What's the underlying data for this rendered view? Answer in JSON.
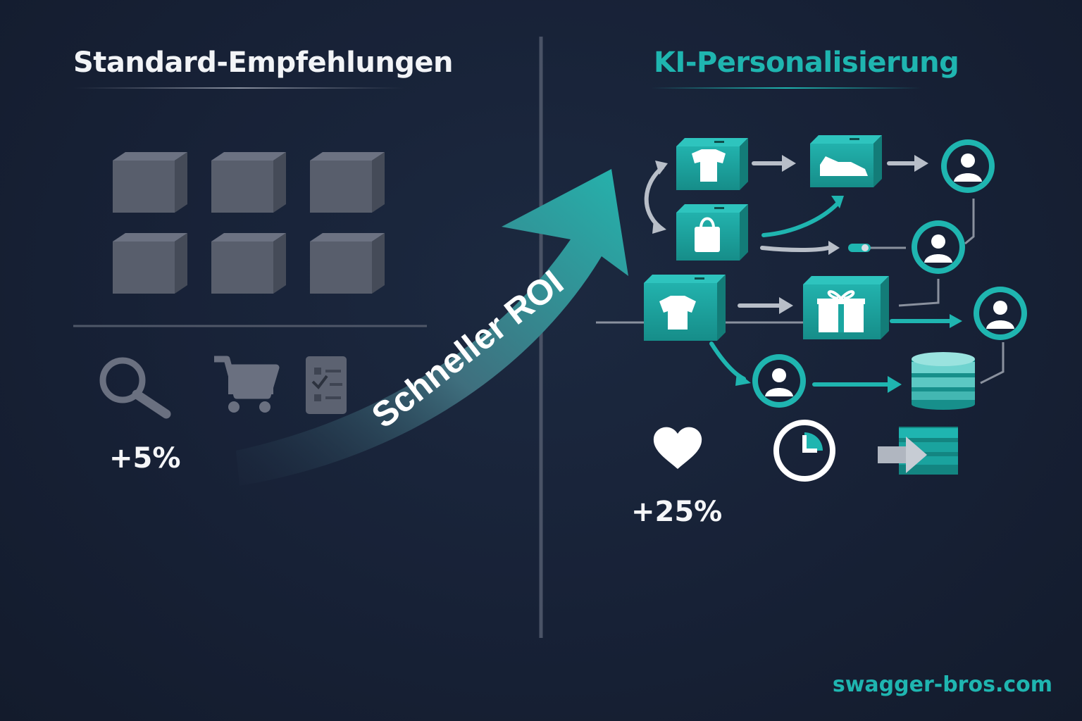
{
  "left": {
    "title": "Standard-Empfehlungen",
    "percent": "+5%",
    "icons": [
      "search-icon",
      "shopping-cart-icon",
      "checklist-icon"
    ]
  },
  "center": {
    "arrow_label": "Schneller ROI"
  },
  "right": {
    "title": "KI-Personalisierung",
    "percent": "+25%",
    "nodes": [
      "tshirt-box-icon",
      "sneaker-box-icon",
      "shopping-bag-box-icon",
      "shirt-box-icon",
      "gift-box-icon",
      "user-icon",
      "database-icon"
    ],
    "icons": [
      "heart-icon",
      "clock-icon",
      "export-icon"
    ]
  },
  "footer": "swagger-bros.com",
  "colors": {
    "background": "#172136",
    "accent": "#1fb5b0",
    "box_gray": "#5a606e",
    "text": "#f2f4f7"
  }
}
